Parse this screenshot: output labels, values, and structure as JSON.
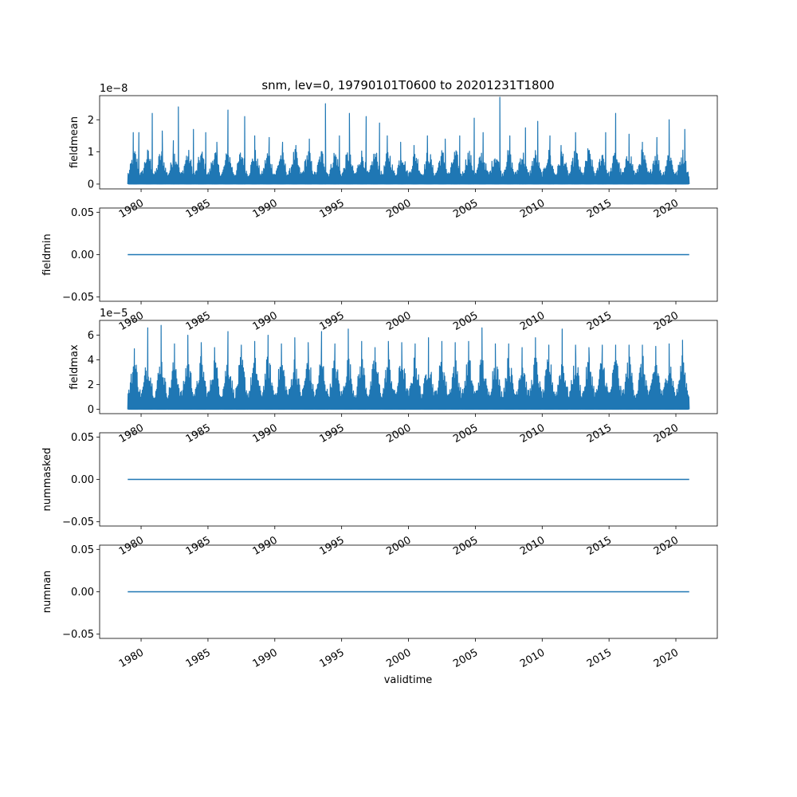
{
  "figure": {
    "title": "snm, lev=0, 19790101T0600 to 20201231T1800",
    "xlabel": "validtime",
    "line_color": "#1f77b4"
  },
  "chart_data": [
    {
      "type": "line",
      "ylabel": "fieldmean",
      "offset_text": "1e−8",
      "xlim": [
        "1976-11-24",
        "2023-02-06"
      ],
      "ylim": [
        -0.15,
        2.75
      ],
      "yticks": [
        0,
        1,
        2
      ],
      "ytick_labels": [
        "0",
        "1",
        "2"
      ],
      "xticks": [
        "1980-01-01",
        "1985-01-01",
        "1990-01-01",
        "1995-01-01",
        "2000-01-01",
        "2005-01-01",
        "2010-01-01",
        "2015-01-01",
        "2020-01-01"
      ],
      "xtick_labels": [
        "1980",
        "1985",
        "1990",
        "1995",
        "2000",
        "2005",
        "2010",
        "2015",
        "2020"
      ],
      "series": [
        {
          "x_range": [
            "1979-01-01",
            "2020-12-31"
          ],
          "y_min": 0,
          "y_typical_max": 1.0,
          "peaks": [
            {
              "x": "1979-06-01",
              "y": 1.6
            },
            {
              "x": "1979-11-01",
              "y": 1.6
            },
            {
              "x": "1980-11-01",
              "y": 2.2
            },
            {
              "x": "1981-08-01",
              "y": 1.65
            },
            {
              "x": "1982-06-01",
              "y": 1.35
            },
            {
              "x": "1982-10-15",
              "y": 2.4
            },
            {
              "x": "1983-12-01",
              "y": 1.7
            },
            {
              "x": "1984-11-01",
              "y": 1.6
            },
            {
              "x": "1985-09-01",
              "y": 1.3
            },
            {
              "x": "1986-07-01",
              "y": 2.3
            },
            {
              "x": "1987-10-01",
              "y": 2.1
            },
            {
              "x": "1988-07-01",
              "y": 1.5
            },
            {
              "x": "1989-08-01",
              "y": 1.45
            },
            {
              "x": "1990-08-01",
              "y": 1.3
            },
            {
              "x": "1991-08-01",
              "y": 1.2
            },
            {
              "x": "1992-08-01",
              "y": 1.4
            },
            {
              "x": "1993-10-15",
              "y": 2.5
            },
            {
              "x": "1994-11-01",
              "y": 1.5
            },
            {
              "x": "1995-08-01",
              "y": 2.2
            },
            {
              "x": "1996-11-01",
              "y": 2.1
            },
            {
              "x": "1997-11-01",
              "y": 1.9
            },
            {
              "x": "1998-06-01",
              "y": 1.5
            },
            {
              "x": "1999-06-01",
              "y": 1.3
            },
            {
              "x": "2000-06-01",
              "y": 1.2
            },
            {
              "x": "2001-06-01",
              "y": 1.5
            },
            {
              "x": "2002-10-01",
              "y": 1.4
            },
            {
              "x": "2003-11-01",
              "y": 1.5
            },
            {
              "x": "2004-12-01",
              "y": 2.05
            },
            {
              "x": "2005-08-01",
              "y": 1.6
            },
            {
              "x": "2006-11-01",
              "y": 2.7
            },
            {
              "x": "2007-08-01",
              "y": 1.5
            },
            {
              "x": "2008-10-01",
              "y": 1.75
            },
            {
              "x": "2009-09-01",
              "y": 1.95
            },
            {
              "x": "2010-08-01",
              "y": 1.5
            },
            {
              "x": "2011-06-01",
              "y": 1.2
            },
            {
              "x": "2012-07-01",
              "y": 1.6
            },
            {
              "x": "2013-06-01",
              "y": 1.1
            },
            {
              "x": "2014-10-01",
              "y": 1.6
            },
            {
              "x": "2015-07-01",
              "y": 2.2
            },
            {
              "x": "2016-07-01",
              "y": 1.55
            },
            {
              "x": "2017-07-01",
              "y": 1.3
            },
            {
              "x": "2018-08-01",
              "y": 1.45
            },
            {
              "x": "2019-07-01",
              "y": 2.0
            },
            {
              "x": "2020-09-01",
              "y": 1.7
            }
          ]
        }
      ]
    },
    {
      "type": "line",
      "ylabel": "fieldmin",
      "offset_text": "",
      "xlim": [
        "1976-11-24",
        "2023-02-06"
      ],
      "ylim": [
        -0.055,
        0.055
      ],
      "yticks": [
        -0.05,
        0,
        0.05
      ],
      "ytick_labels": [
        "−0.05",
        "0.00",
        "0.05"
      ],
      "xticks": [
        "1980-01-01",
        "1985-01-01",
        "1990-01-01",
        "1995-01-01",
        "2000-01-01",
        "2005-01-01",
        "2010-01-01",
        "2015-01-01",
        "2020-01-01"
      ],
      "xtick_labels": [
        "1980",
        "1985",
        "1990",
        "1995",
        "2000",
        "2005",
        "2010",
        "2015",
        "2020"
      ],
      "series": [
        {
          "x": [
            "1979-01-01",
            "2020-12-31"
          ],
          "y": [
            0,
            0
          ]
        }
      ]
    },
    {
      "type": "line",
      "ylabel": "fieldmax",
      "offset_text": "1e−5",
      "xlim": [
        "1976-11-24",
        "2023-02-06"
      ],
      "ylim": [
        -0.35,
        7.2
      ],
      "yticks": [
        0,
        2,
        4,
        6
      ],
      "ytick_labels": [
        "0",
        "2",
        "4",
        "6"
      ],
      "xticks": [
        "1980-01-01",
        "1985-01-01",
        "1990-01-01",
        "1995-01-01",
        "2000-01-01",
        "2005-01-01",
        "2010-01-01",
        "2015-01-01",
        "2020-01-01"
      ],
      "xtick_labels": [
        "1980",
        "1985",
        "1990",
        "1995",
        "2000",
        "2005",
        "2010",
        "2015",
        "2020"
      ],
      "series": [
        {
          "x_range": [
            "1979-01-01",
            "2020-12-31"
          ],
          "y_min": 0,
          "y_typical_max": 4.0,
          "peaks": [
            {
              "x": "1979-07-01",
              "y": 4.9
            },
            {
              "x": "1980-07-01",
              "y": 6.6
            },
            {
              "x": "1981-07-01",
              "y": 6.8
            },
            {
              "x": "1982-07-01",
              "y": 5.3
            },
            {
              "x": "1983-07-01",
              "y": 6.0
            },
            {
              "x": "1984-07-01",
              "y": 5.4
            },
            {
              "x": "1985-07-01",
              "y": 5.0
            },
            {
              "x": "1986-07-01",
              "y": 6.3
            },
            {
              "x": "1987-07-01",
              "y": 5.2
            },
            {
              "x": "1988-07-01",
              "y": 5.5
            },
            {
              "x": "1989-07-01",
              "y": 6.0
            },
            {
              "x": "1990-07-01",
              "y": 5.3
            },
            {
              "x": "1991-07-01",
              "y": 5.8
            },
            {
              "x": "1992-07-01",
              "y": 5.4
            },
            {
              "x": "1993-07-01",
              "y": 6.3
            },
            {
              "x": "1994-07-01",
              "y": 5.3
            },
            {
              "x": "1995-07-01",
              "y": 6.5
            },
            {
              "x": "1996-07-01",
              "y": 5.5
            },
            {
              "x": "1997-07-01",
              "y": 5.0
            },
            {
              "x": "1998-07-01",
              "y": 5.5
            },
            {
              "x": "1999-07-01",
              "y": 5.4
            },
            {
              "x": "2000-07-01",
              "y": 5.3
            },
            {
              "x": "2001-07-01",
              "y": 5.8
            },
            {
              "x": "2002-07-01",
              "y": 5.5
            },
            {
              "x": "2003-07-01",
              "y": 5.4
            },
            {
              "x": "2004-07-01",
              "y": 5.5
            },
            {
              "x": "2005-07-01",
              "y": 6.6
            },
            {
              "x": "2006-07-01",
              "y": 5.3
            },
            {
              "x": "2007-07-01",
              "y": 5.3
            },
            {
              "x": "2008-07-01",
              "y": 5.0
            },
            {
              "x": "2009-07-01",
              "y": 5.8
            },
            {
              "x": "2010-07-01",
              "y": 5.2
            },
            {
              "x": "2011-07-01",
              "y": 6.5
            },
            {
              "x": "2012-07-01",
              "y": 5.2
            },
            {
              "x": "2013-07-01",
              "y": 5.0
            },
            {
              "x": "2014-07-01",
              "y": 5.2
            },
            {
              "x": "2015-07-01",
              "y": 5.2
            },
            {
              "x": "2016-07-01",
              "y": 5.2
            },
            {
              "x": "2017-07-01",
              "y": 5.2
            },
            {
              "x": "2018-07-01",
              "y": 5.1
            },
            {
              "x": "2019-07-01",
              "y": 5.3
            },
            {
              "x": "2020-07-01",
              "y": 5.6
            }
          ]
        }
      ]
    },
    {
      "type": "line",
      "ylabel": "nummasked",
      "offset_text": "",
      "xlim": [
        "1976-11-24",
        "2023-02-06"
      ],
      "ylim": [
        -0.055,
        0.055
      ],
      "yticks": [
        -0.05,
        0,
        0.05
      ],
      "ytick_labels": [
        "−0.05",
        "0.00",
        "0.05"
      ],
      "xticks": [
        "1980-01-01",
        "1985-01-01",
        "1990-01-01",
        "1995-01-01",
        "2000-01-01",
        "2005-01-01",
        "2010-01-01",
        "2015-01-01",
        "2020-01-01"
      ],
      "xtick_labels": [
        "1980",
        "1985",
        "1990",
        "1995",
        "2000",
        "2005",
        "2010",
        "2015",
        "2020"
      ],
      "series": [
        {
          "x": [
            "1979-01-01",
            "2020-12-31"
          ],
          "y": [
            0,
            0
          ]
        }
      ]
    },
    {
      "type": "line",
      "ylabel": "numnan",
      "offset_text": "",
      "xlim": [
        "1976-11-24",
        "2023-02-06"
      ],
      "ylim": [
        -0.055,
        0.055
      ],
      "yticks": [
        -0.05,
        0,
        0.05
      ],
      "ytick_labels": [
        "−0.05",
        "0.00",
        "0.05"
      ],
      "xticks": [
        "1980-01-01",
        "1985-01-01",
        "1990-01-01",
        "1995-01-01",
        "2000-01-01",
        "2005-01-01",
        "2010-01-01",
        "2015-01-01",
        "2020-01-01"
      ],
      "xtick_labels": [
        "1980",
        "1985",
        "1990",
        "1995",
        "2000",
        "2005",
        "2010",
        "2015",
        "2020"
      ],
      "series": [
        {
          "x": [
            "1979-01-01",
            "2020-12-31"
          ],
          "y": [
            0,
            0
          ]
        }
      ]
    }
  ]
}
